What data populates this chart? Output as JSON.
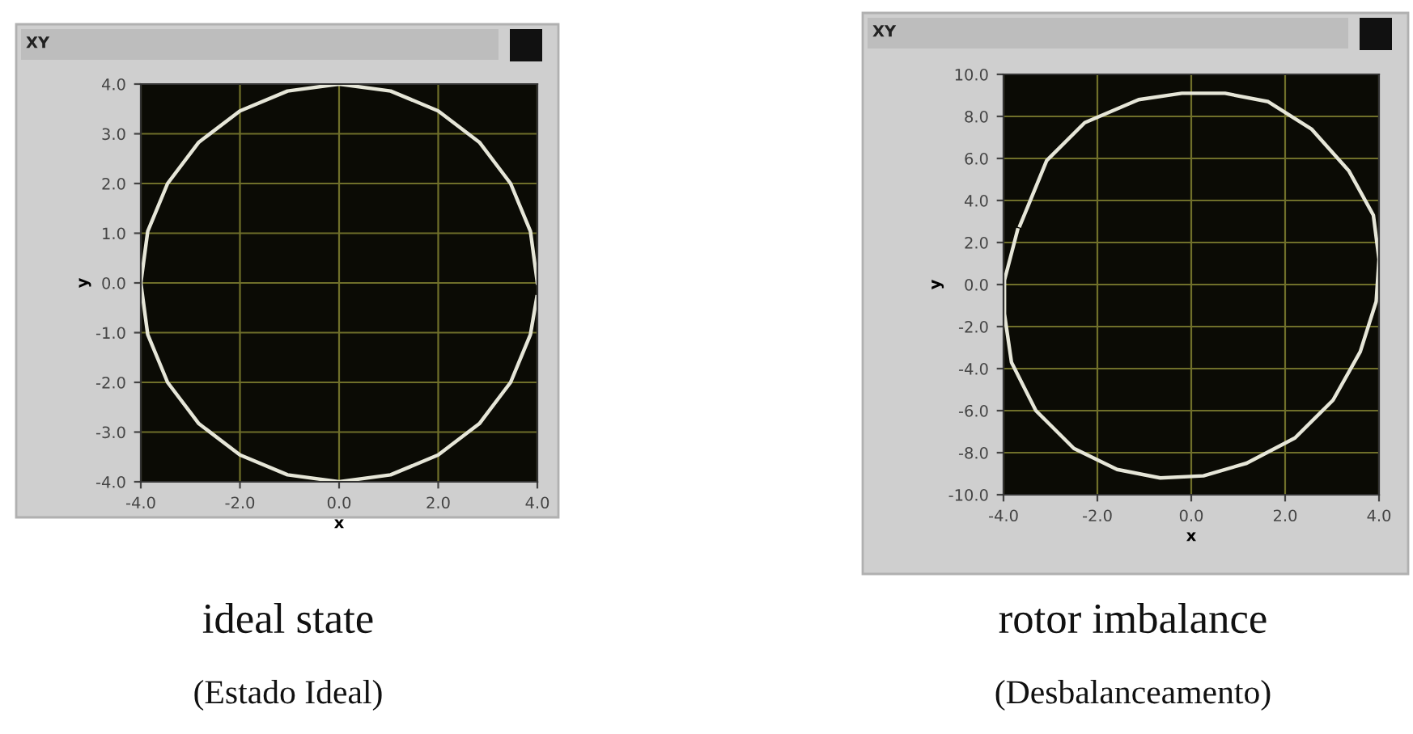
{
  "chart_data": [
    {
      "type": "line",
      "title": "XY",
      "xlabel": "x",
      "ylabel": "y",
      "annotations": [
        "ideal state",
        "(Estado Ideal)"
      ],
      "x": [
        4.0,
        3.86,
        3.46,
        2.83,
        2.0,
        1.04,
        0.0,
        -1.04,
        -2.0,
        -2.83,
        -3.46,
        -3.86,
        -4.0,
        -3.86,
        -3.46,
        -2.83,
        -2.0,
        -1.04,
        0.0,
        1.04,
        2.0,
        2.83,
        3.46,
        3.86,
        3.99
      ],
      "series": [
        {
          "color": "#e6e6d8",
          "values": [
            0.0,
            1.04,
            2.0,
            2.83,
            3.46,
            3.86,
            4.0,
            3.86,
            3.46,
            2.83,
            2.0,
            1.04,
            0.0,
            -1.04,
            -2.0,
            -2.83,
            -3.46,
            -3.86,
            -4.0,
            -3.86,
            -3.46,
            -2.83,
            -2.0,
            -1.04,
            -0.28
          ]
        }
      ],
      "xlim": [
        -4,
        4
      ],
      "ylim": [
        -4,
        4
      ],
      "xticks": [
        {
          "value": -4,
          "label": "-4.0"
        },
        {
          "value": -2,
          "label": "-2.0"
        },
        {
          "value": 0,
          "label": "0.0"
        },
        {
          "value": 2,
          "label": "2.0"
        },
        {
          "value": 4,
          "label": "4.0"
        }
      ],
      "yticks": [
        {
          "value": -4,
          "label": "-4.0"
        },
        {
          "value": -3,
          "label": "-3.0"
        },
        {
          "value": -2,
          "label": "-2.0"
        },
        {
          "value": -1,
          "label": "-1.0"
        },
        {
          "value": 0,
          "label": "0.0"
        },
        {
          "value": 1,
          "label": "1.0"
        },
        {
          "value": 2,
          "label": "2.0"
        },
        {
          "value": 3,
          "label": "3.0"
        },
        {
          "value": 4,
          "label": "4.0"
        }
      ],
      "grid": true,
      "marker": "none",
      "line_style": "solid"
    },
    {
      "type": "line",
      "title": "XY",
      "xlabel": "x",
      "ylabel": "y",
      "annotations": [
        "rotor imbalance",
        "(Desbalanceamento)"
      ],
      "x": [
        -3.65,
        -3.08,
        -2.27,
        -1.12,
        -0.2,
        0.72,
        1.64,
        2.56,
        3.36,
        3.88,
        4.0,
        3.94,
        3.6,
        3.02,
        2.21,
        1.18,
        0.26,
        -0.66,
        -1.58,
        -2.5,
        -3.31,
        -3.83,
        -3.98,
        -3.98,
        -3.7
      ],
      "series": [
        {
          "color": "#e6e6d8",
          "values": [
            2.8,
            5.9,
            7.7,
            8.8,
            9.1,
            9.1,
            8.7,
            7.4,
            5.4,
            3.3,
            1.2,
            -0.8,
            -3.2,
            -5.5,
            -7.3,
            -8.5,
            -9.1,
            -9.2,
            -8.8,
            -7.8,
            -6.0,
            -3.7,
            -1.4,
            0.2,
            2.6
          ]
        }
      ],
      "xlim": [
        -4,
        4
      ],
      "ylim": [
        -10,
        10
      ],
      "xticks": [
        {
          "value": -4,
          "label": "-4.0"
        },
        {
          "value": -2,
          "label": "-2.0"
        },
        {
          "value": 0,
          "label": "0.0"
        },
        {
          "value": 2,
          "label": "2.0"
        },
        {
          "value": 4,
          "label": "4.0"
        }
      ],
      "yticks": [
        {
          "value": -10,
          "label": "-10.0"
        },
        {
          "value": -8,
          "label": "-8.0"
        },
        {
          "value": -6,
          "label": "-6.0"
        },
        {
          "value": -4,
          "label": "-4.0"
        },
        {
          "value": -2,
          "label": "-2.0"
        },
        {
          "value": 0,
          "label": "0.0"
        },
        {
          "value": 2,
          "label": "2.0"
        },
        {
          "value": 4,
          "label": "4.0"
        },
        {
          "value": 6,
          "label": "6.0"
        },
        {
          "value": 8,
          "label": "8.0"
        },
        {
          "value": 10,
          "label": "10.0"
        }
      ],
      "grid": true,
      "marker": "none",
      "line_style": "solid"
    }
  ]
}
